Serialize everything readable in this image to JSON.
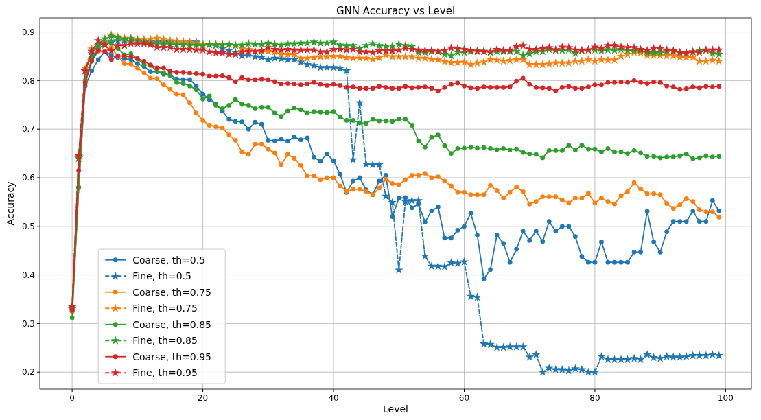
{
  "chart_data": {
    "type": "line",
    "title": "GNN Accuracy vs Level",
    "xlabel": "Level",
    "ylabel": "Accuracy",
    "x": [
      0,
      1,
      2,
      3,
      4,
      5,
      6,
      7,
      8,
      9,
      10,
      11,
      12,
      13,
      14,
      15,
      16,
      17,
      18,
      19,
      20,
      21,
      22,
      23,
      24,
      25,
      26,
      27,
      28,
      29,
      30,
      31,
      32,
      33,
      34,
      35,
      36,
      37,
      38,
      39,
      40,
      41,
      42,
      43,
      44,
      45,
      46,
      47,
      48,
      49,
      50,
      51,
      52,
      53,
      54,
      55,
      56,
      57,
      58,
      59,
      60,
      61,
      62,
      63,
      64,
      65,
      66,
      67,
      68,
      69,
      70,
      71,
      72,
      73,
      74,
      75,
      76,
      77,
      78,
      79,
      80,
      81,
      82,
      83,
      84,
      85,
      86,
      87,
      88,
      89,
      90,
      91,
      92,
      93,
      94,
      95,
      96,
      97,
      98,
      99
    ],
    "xlim": [
      -4.95,
      103.95
    ],
    "xticks": [
      0,
      20,
      40,
      60,
      80,
      100
    ],
    "ylim": [
      0.165,
      0.929
    ],
    "yticks": [
      0.2,
      0.3,
      0.4,
      0.5,
      0.6,
      0.7,
      0.8,
      0.9
    ],
    "grid": true,
    "legend": "lower left",
    "series": [
      {
        "name": "Coarse, th=0.5",
        "color": "#1f77b4",
        "marker": "circle",
        "line_style": "solid",
        "values": [
          0.325,
          0.58,
          0.789,
          0.82,
          0.843,
          0.86,
          0.852,
          0.847,
          0.845,
          0.843,
          0.835,
          0.829,
          0.818,
          0.818,
          0.813,
          0.812,
          0.803,
          0.802,
          0.802,
          0.789,
          0.772,
          0.761,
          0.751,
          0.737,
          0.72,
          0.716,
          0.715,
          0.7,
          0.714,
          0.71,
          0.677,
          0.676,
          0.679,
          0.675,
          0.684,
          0.678,
          0.682,
          0.642,
          0.634,
          0.649,
          0.635,
          0.607,
          0.57,
          0.593,
          0.6,
          0.575,
          0.565,
          0.593,
          0.605,
          0.52,
          0.558,
          0.559,
          0.538,
          0.546,
          0.509,
          0.532,
          0.54,
          0.476,
          0.476,
          0.492,
          0.5,
          0.527,
          0.482,
          0.392,
          0.411,
          0.482,
          0.465,
          0.426,
          0.453,
          0.49,
          0.471,
          0.49,
          0.469,
          0.51,
          0.49,
          0.5,
          0.5,
          0.479,
          0.438,
          0.426,
          0.426,
          0.468,
          0.426,
          0.426,
          0.426,
          0.426,
          0.447,
          0.447,
          0.531,
          0.468,
          0.447,
          0.489,
          0.51,
          0.51,
          0.51,
          0.531,
          0.51,
          0.51,
          0.553,
          0.532
        ]
      },
      {
        "name": "Fine, th=0.5",
        "color": "#1f77b4",
        "marker": "star",
        "line_style": "dashed",
        "values": [
          0.335,
          0.64,
          0.82,
          0.855,
          0.872,
          0.876,
          0.879,
          0.882,
          0.882,
          0.881,
          0.881,
          0.88,
          0.88,
          0.88,
          0.88,
          0.88,
          0.88,
          0.88,
          0.879,
          0.879,
          0.875,
          0.874,
          0.872,
          0.866,
          0.862,
          0.858,
          0.851,
          0.853,
          0.849,
          0.848,
          0.843,
          0.846,
          0.845,
          0.843,
          0.843,
          0.838,
          0.833,
          0.831,
          0.827,
          0.827,
          0.827,
          0.825,
          0.82,
          0.637,
          0.754,
          0.628,
          0.627,
          0.627,
          0.562,
          0.549,
          0.41,
          0.551,
          0.553,
          0.553,
          0.439,
          0.418,
          0.418,
          0.417,
          0.425,
          0.424,
          0.427,
          0.356,
          0.354,
          0.258,
          0.257,
          0.251,
          0.251,
          0.252,
          0.252,
          0.252,
          0.231,
          0.236,
          0.2,
          0.208,
          0.205,
          0.205,
          0.203,
          0.207,
          0.205,
          0.2,
          0.2,
          0.232,
          0.226,
          0.226,
          0.226,
          0.226,
          0.228,
          0.226,
          0.236,
          0.23,
          0.228,
          0.232,
          0.231,
          0.231,
          0.232,
          0.234,
          0.234,
          0.234,
          0.236,
          0.234
        ]
      },
      {
        "name": "Coarse, th=0.75",
        "color": "#ff7f0e",
        "marker": "circle",
        "line_style": "solid",
        "values": [
          0.325,
          0.58,
          0.8,
          0.84,
          0.86,
          0.86,
          0.868,
          0.85,
          0.835,
          0.834,
          0.826,
          0.816,
          0.805,
          0.804,
          0.791,
          0.782,
          0.772,
          0.771,
          0.754,
          0.733,
          0.718,
          0.708,
          0.705,
          0.702,
          0.688,
          0.677,
          0.653,
          0.648,
          0.669,
          0.669,
          0.659,
          0.651,
          0.627,
          0.648,
          0.64,
          0.625,
          0.604,
          0.604,
          0.596,
          0.6,
          0.6,
          0.583,
          0.572,
          0.576,
          0.576,
          0.572,
          0.565,
          0.579,
          0.597,
          0.588,
          0.586,
          0.596,
          0.605,
          0.605,
          0.609,
          0.6,
          0.602,
          0.593,
          0.583,
          0.57,
          0.57,
          0.565,
          0.565,
          0.565,
          0.584,
          0.574,
          0.558,
          0.57,
          0.581,
          0.571,
          0.546,
          0.551,
          0.561,
          0.561,
          0.561,
          0.554,
          0.548,
          0.558,
          0.558,
          0.568,
          0.548,
          0.558,
          0.551,
          0.546,
          0.563,
          0.571,
          0.59,
          0.577,
          0.567,
          0.567,
          0.565,
          0.547,
          0.537,
          0.544,
          0.557,
          0.551,
          0.534,
          0.53,
          0.53,
          0.519
        ]
      },
      {
        "name": "Fine, th=0.75",
        "color": "#ff7f0e",
        "marker": "star",
        "line_style": "dashed",
        "values": [
          0.335,
          0.64,
          0.825,
          0.865,
          0.875,
          0.88,
          0.894,
          0.89,
          0.887,
          0.887,
          0.885,
          0.885,
          0.885,
          0.887,
          0.885,
          0.882,
          0.881,
          0.88,
          0.878,
          0.877,
          0.875,
          0.875,
          0.874,
          0.874,
          0.874,
          0.872,
          0.866,
          0.864,
          0.86,
          0.86,
          0.86,
          0.859,
          0.854,
          0.854,
          0.854,
          0.846,
          0.846,
          0.847,
          0.849,
          0.849,
          0.85,
          0.85,
          0.847,
          0.846,
          0.846,
          0.846,
          0.844,
          0.847,
          0.853,
          0.849,
          0.849,
          0.849,
          0.849,
          0.846,
          0.846,
          0.844,
          0.843,
          0.839,
          0.837,
          0.837,
          0.838,
          0.833,
          0.836,
          0.838,
          0.843,
          0.842,
          0.84,
          0.841,
          0.843,
          0.843,
          0.833,
          0.833,
          0.833,
          0.834,
          0.836,
          0.836,
          0.836,
          0.84,
          0.84,
          0.843,
          0.84,
          0.843,
          0.842,
          0.842,
          0.85,
          0.854,
          0.858,
          0.857,
          0.852,
          0.852,
          0.852,
          0.851,
          0.851,
          0.848,
          0.848,
          0.848,
          0.84,
          0.84,
          0.842,
          0.84
        ]
      },
      {
        "name": "Coarse, th=0.85",
        "color": "#2ca02c",
        "marker": "circle",
        "line_style": "solid",
        "values": [
          0.312,
          0.58,
          0.8,
          0.845,
          0.865,
          0.875,
          0.878,
          0.866,
          0.853,
          0.855,
          0.845,
          0.833,
          0.831,
          0.819,
          0.816,
          0.81,
          0.796,
          0.794,
          0.789,
          0.781,
          0.762,
          0.768,
          0.749,
          0.742,
          0.749,
          0.761,
          0.751,
          0.749,
          0.742,
          0.745,
          0.745,
          0.733,
          0.726,
          0.737,
          0.743,
          0.74,
          0.733,
          0.736,
          0.735,
          0.734,
          0.736,
          0.725,
          0.718,
          0.718,
          0.713,
          0.712,
          0.72,
          0.717,
          0.717,
          0.716,
          0.721,
          0.72,
          0.708,
          0.676,
          0.663,
          0.683,
          0.688,
          0.666,
          0.65,
          0.66,
          0.661,
          0.663,
          0.661,
          0.662,
          0.66,
          0.658,
          0.66,
          0.657,
          0.659,
          0.652,
          0.649,
          0.648,
          0.641,
          0.656,
          0.656,
          0.656,
          0.667,
          0.657,
          0.667,
          0.659,
          0.659,
          0.653,
          0.66,
          0.653,
          0.653,
          0.65,
          0.656,
          0.651,
          0.644,
          0.644,
          0.641,
          0.643,
          0.643,
          0.645,
          0.649,
          0.639,
          0.641,
          0.645,
          0.643,
          0.644
        ]
      },
      {
        "name": "Fine, th=0.85",
        "color": "#2ca02c",
        "marker": "star",
        "line_style": "dashed",
        "values": [
          0.33,
          0.64,
          0.82,
          0.86,
          0.875,
          0.886,
          0.891,
          0.888,
          0.885,
          0.886,
          0.882,
          0.878,
          0.877,
          0.876,
          0.876,
          0.876,
          0.874,
          0.874,
          0.873,
          0.873,
          0.872,
          0.874,
          0.873,
          0.873,
          0.875,
          0.872,
          0.873,
          0.876,
          0.875,
          0.875,
          0.877,
          0.875,
          0.873,
          0.876,
          0.876,
          0.877,
          0.877,
          0.879,
          0.877,
          0.877,
          0.879,
          0.873,
          0.872,
          0.872,
          0.866,
          0.872,
          0.876,
          0.872,
          0.871,
          0.871,
          0.875,
          0.872,
          0.87,
          0.858,
          0.858,
          0.86,
          0.86,
          0.854,
          0.851,
          0.858,
          0.858,
          0.86,
          0.861,
          0.86,
          0.858,
          0.86,
          0.86,
          0.86,
          0.86,
          0.852,
          0.855,
          0.86,
          0.86,
          0.864,
          0.862,
          0.862,
          0.863,
          0.856,
          0.862,
          0.863,
          0.863,
          0.861,
          0.863,
          0.862,
          0.864,
          0.862,
          0.862,
          0.862,
          0.857,
          0.857,
          0.857,
          0.86,
          0.86,
          0.857,
          0.856,
          0.859,
          0.862,
          0.862,
          0.856,
          0.854
        ]
      },
      {
        "name": "Coarse, th=0.95",
        "color": "#d62728",
        "marker": "circle",
        "line_style": "solid",
        "values": [
          0.327,
          0.615,
          0.795,
          0.84,
          0.862,
          0.859,
          0.843,
          0.851,
          0.85,
          0.849,
          0.845,
          0.84,
          0.832,
          0.826,
          0.826,
          0.819,
          0.817,
          0.817,
          0.815,
          0.814,
          0.813,
          0.809,
          0.809,
          0.81,
          0.806,
          0.798,
          0.806,
          0.802,
          0.802,
          0.803,
          0.802,
          0.798,
          0.793,
          0.794,
          0.793,
          0.791,
          0.793,
          0.796,
          0.792,
          0.79,
          0.792,
          0.79,
          0.786,
          0.787,
          0.784,
          0.784,
          0.784,
          0.788,
          0.786,
          0.784,
          0.784,
          0.788,
          0.785,
          0.786,
          0.787,
          0.784,
          0.779,
          0.786,
          0.792,
          0.795,
          0.789,
          0.785,
          0.784,
          0.787,
          0.786,
          0.786,
          0.786,
          0.787,
          0.799,
          0.805,
          0.792,
          0.786,
          0.785,
          0.784,
          0.779,
          0.786,
          0.788,
          0.784,
          0.784,
          0.787,
          0.791,
          0.791,
          0.796,
          0.796,
          0.797,
          0.796,
          0.8,
          0.796,
          0.794,
          0.797,
          0.796,
          0.789,
          0.787,
          0.782,
          0.783,
          0.787,
          0.785,
          0.788,
          0.787,
          0.788
        ]
      },
      {
        "name": "Fine, th=0.95",
        "color": "#d62728",
        "marker": "star",
        "line_style": "dashed",
        "values": [
          0.335,
          0.645,
          0.82,
          0.86,
          0.882,
          0.873,
          0.861,
          0.872,
          0.872,
          0.876,
          0.876,
          0.876,
          0.874,
          0.868,
          0.868,
          0.868,
          0.864,
          0.864,
          0.864,
          0.863,
          0.863,
          0.859,
          0.857,
          0.857,
          0.854,
          0.854,
          0.859,
          0.86,
          0.86,
          0.862,
          0.868,
          0.864,
          0.863,
          0.864,
          0.863,
          0.863,
          0.863,
          0.863,
          0.859,
          0.859,
          0.864,
          0.864,
          0.863,
          0.864,
          0.859,
          0.859,
          0.858,
          0.861,
          0.861,
          0.861,
          0.863,
          0.867,
          0.864,
          0.863,
          0.862,
          0.862,
          0.86,
          0.862,
          0.867,
          0.866,
          0.864,
          0.862,
          0.86,
          0.86,
          0.859,
          0.864,
          0.862,
          0.862,
          0.87,
          0.872,
          0.864,
          0.864,
          0.866,
          0.868,
          0.863,
          0.869,
          0.868,
          0.863,
          0.862,
          0.863,
          0.869,
          0.866,
          0.872,
          0.872,
          0.869,
          0.868,
          0.868,
          0.864,
          0.862,
          0.866,
          0.866,
          0.863,
          0.861,
          0.858,
          0.857,
          0.859,
          0.858,
          0.863,
          0.863,
          0.863
        ]
      }
    ]
  }
}
